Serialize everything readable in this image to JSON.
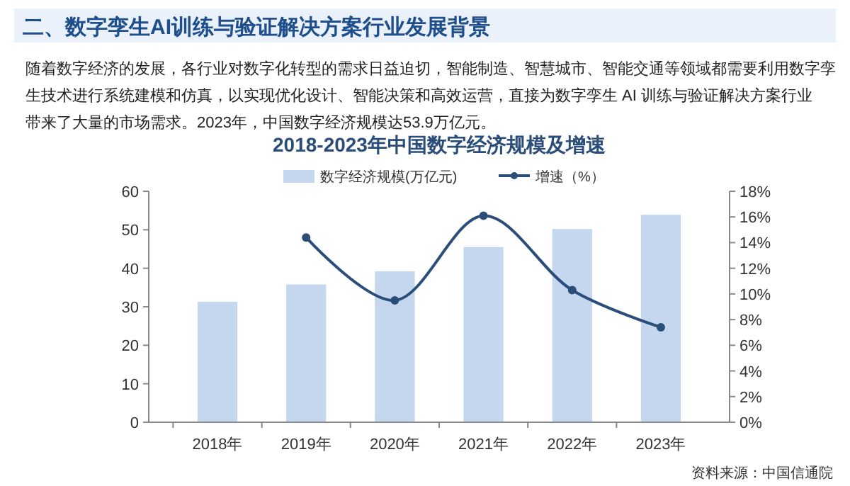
{
  "chart_data": {
    "type": "bar",
    "title": "2018-2023年中国数字经济规模及增速",
    "annotations": [
      "二、数字孪生AI训练与验证解决方案行业发展背景",
      "随着数字经济的发展，各行业对数字化转型的需求日益迫切，智能制造、智慧城市、智能交通等领域都需要利用数字孪生技术进行系统建模和仿真，以实现优化设计、智能决策和高效运营，直接为数字孪生 AI 训练与验证解决方案行业带来了大量的市场需求。2023年，中国数字经济规模达53.9万亿元。",
      "资料来源：中国信通院"
    ],
    "categories": [
      "2018年",
      "2019年",
      "2020年",
      "2021年",
      "2022年",
      "2023年"
    ],
    "series": [
      {
        "name": "数字经济规模(万亿元)",
        "color": "#c5d7ef",
        "values": [
          31.3,
          35.8,
          39.2,
          45.5,
          50.2,
          53.9
        ]
      },
      {
        "name": "增速（%）",
        "type": "line",
        "axis": "y2",
        "color": "#2a4d7a",
        "values": [
          null,
          14.4,
          9.5,
          16.1,
          10.3,
          7.4
        ]
      }
    ],
    "ylim": [
      0,
      60
    ],
    "yticks": [
      0,
      10,
      20,
      30,
      40,
      50,
      60
    ],
    "y2lim": [
      0,
      18
    ],
    "y2ticks": [
      {
        "value": 0,
        "label": "0%"
      },
      {
        "value": 2,
        "label": "2%"
      },
      {
        "value": 4,
        "label": "4%"
      },
      {
        "value": 6,
        "label": "6%"
      },
      {
        "value": 8,
        "label": "8%"
      },
      {
        "value": 10,
        "label": "10%"
      },
      {
        "value": 12,
        "label": "12%"
      },
      {
        "value": 14,
        "label": "14%"
      },
      {
        "value": 16,
        "label": "16%"
      },
      {
        "value": 18,
        "label": "18%"
      }
    ],
    "grid": false,
    "legend": "top",
    "marker": "circle",
    "line_style": "solid"
  }
}
